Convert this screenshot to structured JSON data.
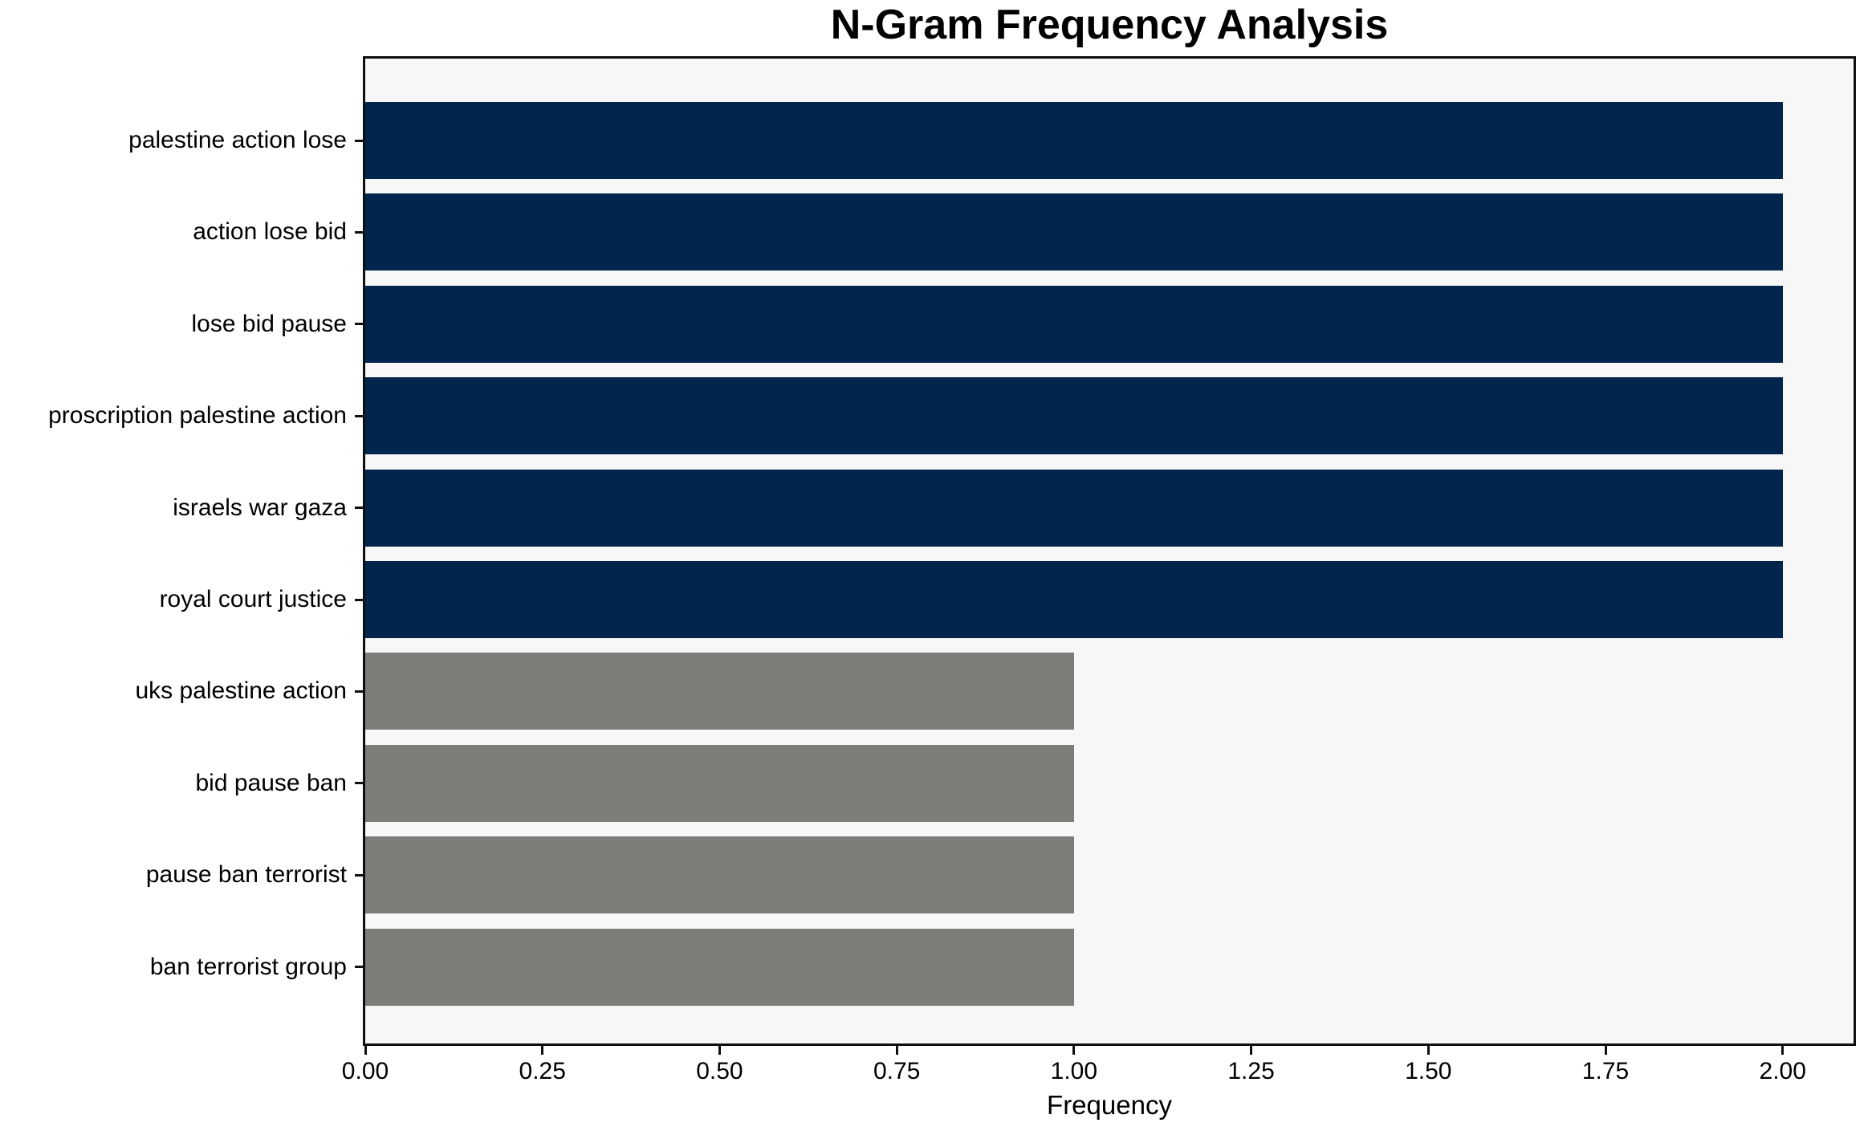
{
  "chart_data": {
    "type": "bar",
    "orientation": "horizontal",
    "title": "N-Gram Frequency Analysis",
    "xlabel": "Frequency",
    "ylabel": "",
    "categories": [
      "palestine action lose",
      "action lose bid",
      "lose bid pause",
      "proscription palestine action",
      "israels war gaza",
      "royal court justice",
      "uks palestine action",
      "bid pause ban",
      "pause ban terrorist",
      "ban terrorist group"
    ],
    "values": [
      2,
      2,
      2,
      2,
      2,
      2,
      1,
      1,
      1,
      1
    ],
    "bar_colors": [
      "#02254d",
      "#02254d",
      "#02254d",
      "#02254d",
      "#02254d",
      "#02254d",
      "#7d7c79",
      "#7d7c79",
      "#7d7c79",
      "#7d7c79"
    ],
    "xlim": [
      0,
      2.1
    ],
    "xticks": [
      0,
      0.25,
      0.5,
      0.75,
      1.0,
      1.25,
      1.5,
      1.75,
      2.0
    ],
    "xtick_labels": [
      "0.00",
      "0.25",
      "0.50",
      "0.75",
      "1.00",
      "1.25",
      "1.50",
      "1.75",
      "2.00"
    ],
    "grid": false,
    "legend": null
  },
  "colors": {
    "plot_background": "#f7f7f7",
    "figure_background": "#ffffff",
    "axis": "#0f0f0f",
    "text": "#000000"
  }
}
